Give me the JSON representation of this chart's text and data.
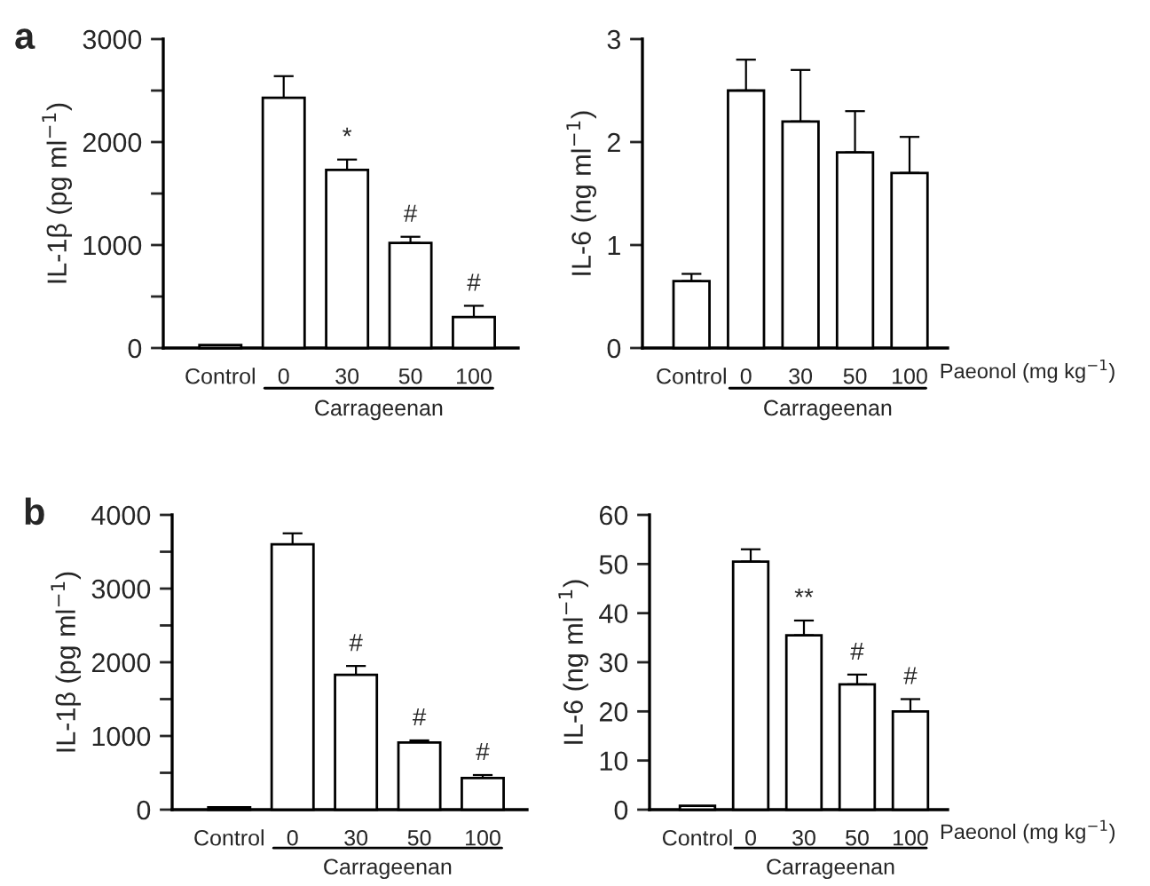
{
  "chart_data": [
    {
      "type": "bar",
      "title": "a",
      "ylabel": "IL-1β (pg ml$^{−1}$)",
      "xlabel": "Carrageenan",
      "categories": [
        "Control",
        "0",
        "30",
        "50",
        "100"
      ],
      "color": "#ffffff",
      "values": [
        30,
        2430,
        1730,
        1020,
        300
      ],
      "errors": [
        null,
        210,
        100,
        60,
        110
      ],
      "ylim": [
        0,
        3000
      ],
      "yticks": [
        0,
        {
          "value": 500,
          "label": null
        },
        1000,
        {
          "value": 1500,
          "label": null
        },
        2000,
        {
          "value": 2500,
          "label": null
        },
        3000
      ],
      "annotations": [
        {
          "text": "*",
          "x": "30",
          "y": 1830
        },
        {
          "text": "#",
          "x": "50",
          "y": 1080
        },
        {
          "text": "#",
          "x": "100",
          "y": 410
        }
      ]
    },
    {
      "type": "bar",
      "ylabel": "IL-6 (ng ml$^{−1}$)",
      "xlabel": "Carrageenan",
      "categories": [
        "Control",
        "0",
        "30",
        "50",
        "100"
      ],
      "color": "#ffffff",
      "values": [
        0.65,
        2.5,
        2.2,
        1.9,
        1.7
      ],
      "errors": [
        0.07,
        0.3,
        0.5,
        0.4,
        0.35
      ],
      "ylim": [
        0,
        3
      ],
      "yticks": [
        0,
        1,
        2,
        3
      ],
      "annotations": [
        "Paeonol (mg kg$^{−1}$)"
      ]
    },
    {
      "type": "bar",
      "title": "b",
      "ylabel": "IL-1β (pg ml$^{−1}$)",
      "xlabel": "Carrageenan",
      "categories": [
        "Control",
        "0",
        "30",
        "50",
        "100"
      ],
      "color": "#ffffff",
      "values": [
        30,
        3600,
        1830,
        910,
        430
      ],
      "errors": [
        null,
        150,
        120,
        30,
        40
      ],
      "ylim": [
        0,
        4000
      ],
      "yticks": [
        0,
        {
          "value": 500,
          "label": null
        },
        1000,
        {
          "value": 1500,
          "label": null
        },
        2000,
        {
          "value": 2500,
          "label": null
        },
        3000,
        {
          "value": 3500,
          "label": null
        },
        4000
      ],
      "annotations": [
        {
          "text": "#",
          "x": "30",
          "y": 1950
        },
        {
          "text": "#",
          "x": "50",
          "y": 940
        },
        {
          "text": "#",
          "x": "100",
          "y": 470
        }
      ]
    },
    {
      "type": "bar",
      "ylabel": "IL-6 (ng ml$^{−1}$)",
      "xlabel": "Carrageenan",
      "categories": [
        "Control",
        "0",
        "30",
        "50",
        "100"
      ],
      "color": "#ffffff",
      "values": [
        0.8,
        50.5,
        35.5,
        25.5,
        20
      ],
      "errors": [
        null,
        2.5,
        3,
        2,
        2.5
      ],
      "ylim": [
        0,
        60
      ],
      "yticks": [
        0,
        10,
        20,
        30,
        40,
        50,
        60
      ],
      "annotations": [
        {
          "text": "**",
          "x": "30",
          "y": 38.5
        },
        {
          "text": "#",
          "x": "50",
          "y": 27.5
        },
        {
          "text": "#",
          "x": "100",
          "y": 22.5
        },
        "Paeonol (mg kg$^{−1}$)"
      ]
    }
  ]
}
